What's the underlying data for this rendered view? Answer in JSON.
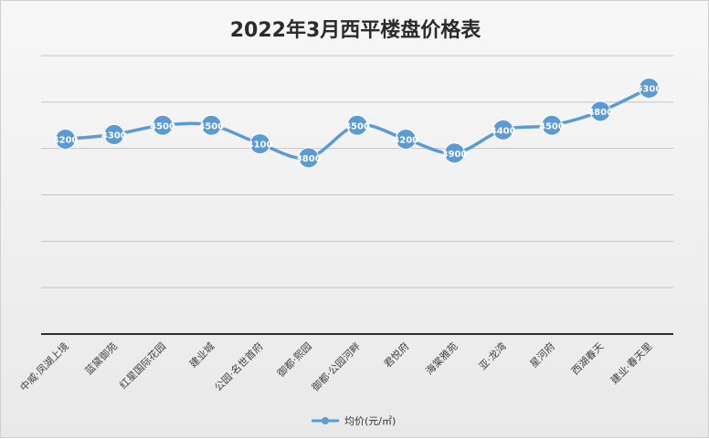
{
  "chart_data": {
    "type": "line",
    "title": "2022年3月西平楼盘价格表",
    "categories": [
      "中威·凤湖上境",
      "蓝黛御苑",
      "红星国际花园",
      "建业城",
      "公园·名世首府",
      "御都·熙园",
      "御都·公园河畔",
      "君悦府",
      "海棠雅苑",
      "亚·龙湾",
      "星河府",
      "西湖春天",
      "建业·春天里"
    ],
    "series": [
      {
        "name": "均价(元/㎡)",
        "values": [
          4200,
          4300,
          4500,
          4500,
          4100,
          3800,
          4500,
          4200,
          3900,
          4400,
          4500,
          4800,
          5300
        ]
      }
    ],
    "ylim": [
      0,
      6000
    ],
    "grid": true,
    "legend_position": "bottom",
    "line_color": "#5b9bd5"
  }
}
